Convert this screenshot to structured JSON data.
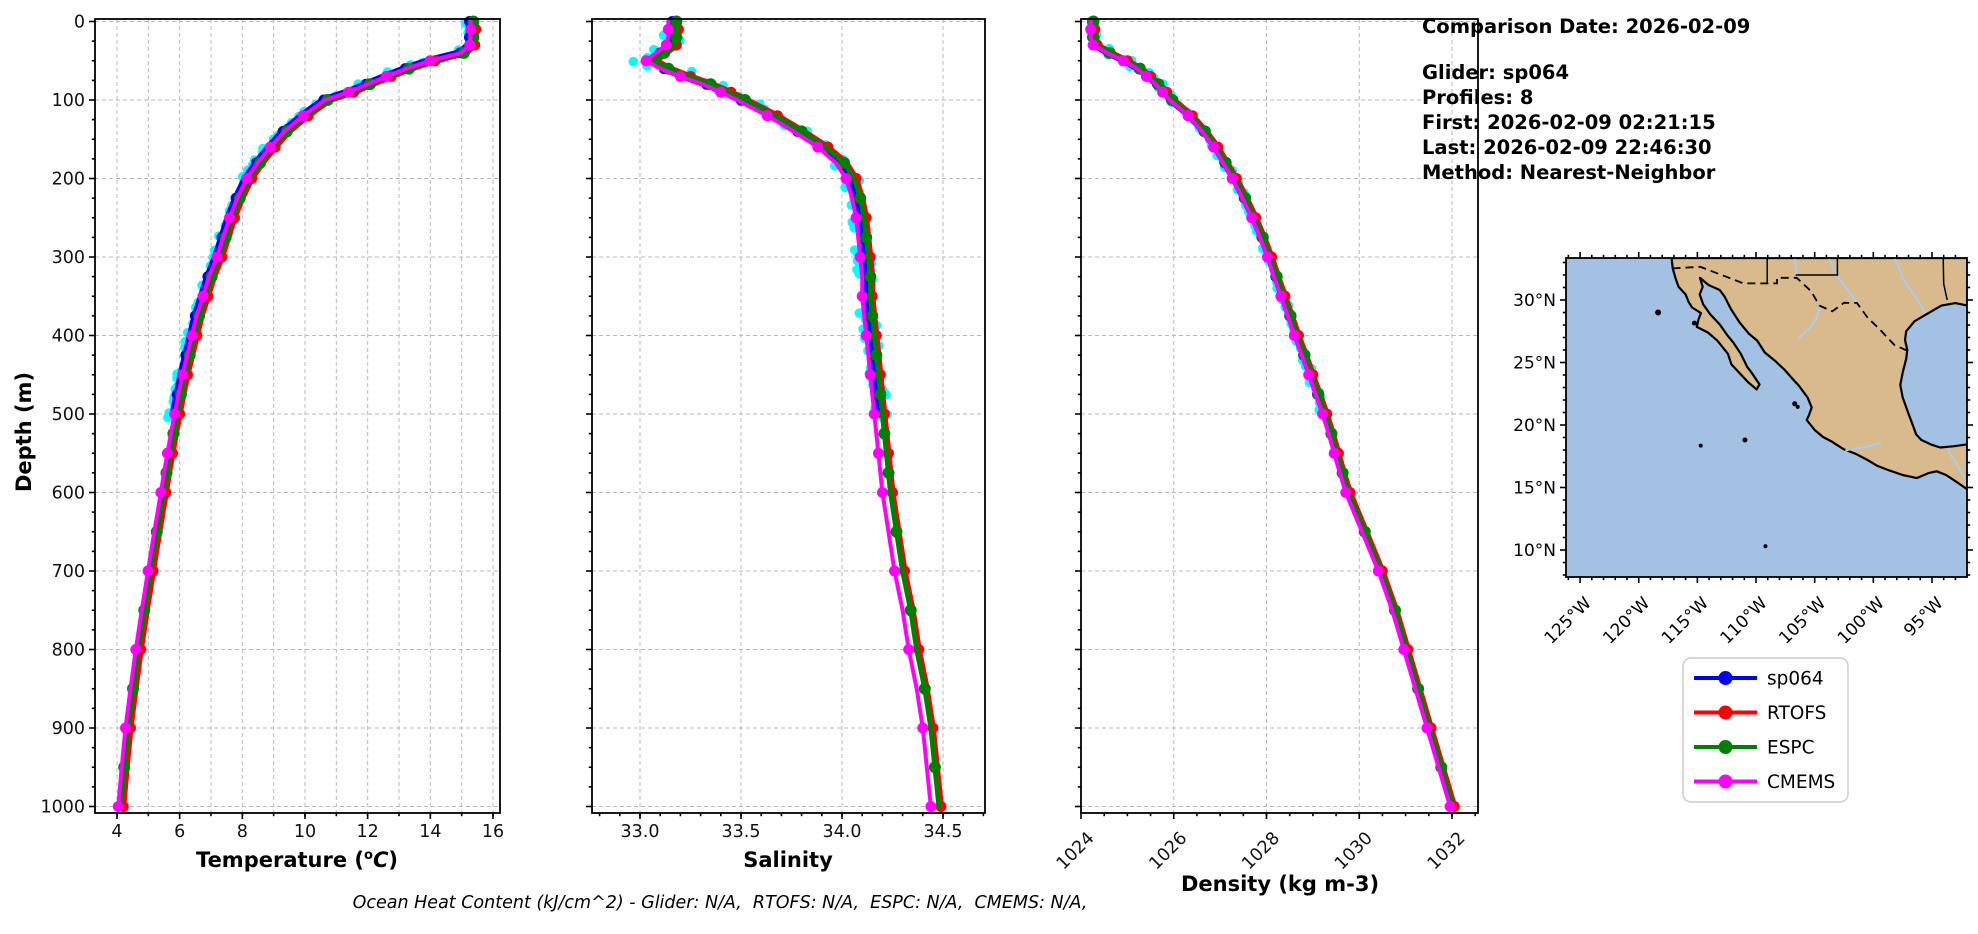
{
  "info_panel": {
    "comparison_date": "Comparison Date: 2026-02-09",
    "glider": "Glider: sp064",
    "profiles": "Profiles: 8",
    "first": "First: 2026-02-09 02:21:15",
    "last": "Last: 2026-02-09 22:46:30",
    "method": "Method: Nearest-Neighbor"
  },
  "legend": {
    "entries": [
      {
        "label": "sp064",
        "color": "#0000ff"
      },
      {
        "label": "RTOFS",
        "color": "#ff0000"
      },
      {
        "label": "ESPC",
        "color": "#008000"
      },
      {
        "label": "CMEMS",
        "color": "#ff00ff"
      }
    ]
  },
  "ohc_note": "Ocean Heat Content (kJ/cm^2) - Glider: N/A,  RTOFS: N/A,  ESPC: N/A,  CMEMS: N/A,",
  "axis_labels": {
    "depth": "Depth (m)",
    "temperature": {
      "pre": "Temperature (",
      "sup": "o",
      "italic": "C",
      "post": ")"
    },
    "salinity": "Salinity",
    "density": "Density (kg m-3)"
  },
  "map": {
    "lat_tick_labels": [
      "30°N",
      "25°N",
      "20°N",
      "15°N",
      "10°N"
    ],
    "lat_tick_values": [
      30,
      25,
      20,
      15,
      10
    ],
    "lon_tick_labels": [
      "125°W",
      "120°W",
      "115°W",
      "110°W",
      "105°W",
      "100°W",
      "95°W"
    ],
    "lon_tick_values": [
      125,
      120,
      115,
      110,
      105,
      100,
      95
    ],
    "land_color": "#d9ba8c",
    "ocean_color": "#a3c1e2",
    "river_color": "#a8cdf2",
    "coast_color": "#000000"
  },
  "chart_data": [
    {
      "type": "line",
      "id": "temperature",
      "xlabel": "Temperature (°C)",
      "ylabel": "Depth (m)",
      "xlim": [
        3.3,
        16.22
      ],
      "ylim": [
        1008,
        -3
      ],
      "xticks": [
        4,
        6,
        8,
        10,
        12,
        14,
        16
      ],
      "xtick_labels": [
        "4",
        "6",
        "8",
        "10",
        "12",
        "14",
        "16"
      ],
      "grid_x": [
        4,
        5,
        6,
        7,
        8,
        9,
        10,
        11,
        12,
        13,
        14,
        15,
        16
      ],
      "minor_step": 1,
      "yticks": [
        0,
        100,
        200,
        300,
        400,
        500,
        600,
        700,
        800,
        900,
        1000
      ],
      "depths": [
        0,
        10,
        20,
        30,
        40,
        50,
        60,
        70,
        80,
        90,
        100,
        120,
        140,
        160,
        180,
        200,
        225,
        250,
        275,
        300,
        325,
        350,
        375,
        400,
        425,
        450,
        475,
        500,
        525,
        550,
        575,
        600,
        650,
        700,
        750,
        800,
        850,
        900,
        950,
        1000
      ],
      "values": [
        15.25,
        15.25,
        15.25,
        15.22,
        14.95,
        13.95,
        13.2,
        12.55,
        11.95,
        11.35,
        10.6,
        9.9,
        9.3,
        8.85,
        8.45,
        8.1,
        7.8,
        7.55,
        7.35,
        7.15,
        6.9,
        6.7,
        6.5,
        6.35,
        6.2,
        6.05,
        5.92,
        5.8,
        5.68,
        5.57,
        5.46,
        5.36,
        5.15,
        4.95,
        4.75,
        4.56,
        4.39,
        4.23,
        4.11,
        4.0
      ],
      "series": [
        {
          "name": "sp064",
          "color": "#0000ff",
          "offset": 0,
          "max_depth": 510,
          "line_width": 7.5,
          "marker_phase": 0,
          "marker_size": 5.5
        },
        {
          "name": "RTOFS",
          "color": "#ff0000",
          "offset": 0.2,
          "max_depth": 1000,
          "line_width": 6,
          "marker_phase": 1,
          "marker_size": 5.5
        },
        {
          "name": "ESPC",
          "color": "#008000",
          "offset": 0.12,
          "max_depth": 1000,
          "line_width": 5,
          "marker_phase": 0,
          "marker_size": 6
        },
        {
          "name": "CMEMS",
          "color": "#ff00ff",
          "offset": 0.04,
          "max_depth": 1000,
          "line_width": 4,
          "marker_phase": 1,
          "marker_size": 5.5
        }
      ],
      "scatter": {
        "color": "#00ffff",
        "jitter": 0.16,
        "max_depth": 512
      }
    },
    {
      "type": "line",
      "id": "salinity",
      "xlabel": "Salinity",
      "ylabel": "Depth (m)",
      "xlim": [
        32.76,
        34.71
      ],
      "ylim": [
        1008,
        -3
      ],
      "xticks": [
        33.0,
        33.5,
        34.0,
        34.5
      ],
      "xtick_labels": [
        "33.0",
        "33.5",
        "34.0",
        "34.5"
      ],
      "grid_x": [
        33.0,
        33.5,
        34.0,
        34.5
      ],
      "minor_step": 0.1,
      "yticks": [
        0,
        100,
        200,
        300,
        400,
        500,
        600,
        700,
        800,
        900,
        1000
      ],
      "depths": [
        0,
        10,
        20,
        30,
        40,
        50,
        60,
        70,
        80,
        90,
        100,
        120,
        140,
        160,
        180,
        200,
        225,
        250,
        275,
        300,
        325,
        350,
        375,
        400,
        425,
        450,
        475,
        500,
        525,
        550,
        575,
        600,
        650,
        700,
        750,
        800,
        850,
        900,
        950,
        1000
      ],
      "values": [
        33.16,
        33.16,
        33.16,
        33.15,
        33.1,
        33.05,
        33.12,
        33.22,
        33.33,
        33.42,
        33.5,
        33.65,
        33.78,
        33.9,
        33.99,
        34.04,
        34.07,
        34.09,
        34.1,
        34.11,
        34.12,
        34.12,
        34.13,
        34.14,
        34.15,
        34.16,
        34.17,
        34.18,
        34.19,
        34.2,
        34.21,
        34.22,
        34.25,
        34.28,
        34.32,
        34.35,
        34.39,
        34.42,
        34.44,
        34.46
      ],
      "series": [
        {
          "name": "sp064",
          "color": "#0000ff",
          "offset": 0,
          "max_depth": 510,
          "line_width": 7.5,
          "marker_phase": 0,
          "marker_size": 5.5
        },
        {
          "name": "RTOFS",
          "color": "#ff0000",
          "offset": 0.03,
          "max_depth": 1000,
          "line_width": 6,
          "marker_phase": 1,
          "marker_size": 5.5
        },
        {
          "name": "ESPC",
          "color": "#008000",
          "offset": 0.02,
          "max_depth": 1000,
          "line_width": 5,
          "marker_phase": 0,
          "marker_size": 6
        },
        {
          "name": "CMEMS",
          "color": "#ff00ff",
          "offset": -0.02,
          "max_depth": 1000,
          "line_width": 4,
          "marker_phase": 1,
          "marker_size": 5.5
        }
      ],
      "scatter": {
        "color": "#00ffff",
        "jitter": 0.05,
        "max_depth": 512
      }
    },
    {
      "type": "line",
      "id": "density",
      "xlabel": "Density (kg m-3)",
      "ylabel": "Depth (m)",
      "xlim": [
        1024,
        1032.56
      ],
      "ylim": [
        1008,
        -3
      ],
      "xticks": [
        1024,
        1026,
        1028,
        1030,
        1032
      ],
      "xtick_labels": [
        "1024",
        "1026",
        "1028",
        "1030",
        "1032"
      ],
      "grid_x": [
        1024,
        1026,
        1028,
        1030,
        1032
      ],
      "minor_step": 0.5,
      "yticks": [
        0,
        100,
        200,
        300,
        400,
        500,
        600,
        700,
        800,
        900,
        1000
      ],
      "depths": [
        0,
        10,
        20,
        30,
        40,
        50,
        60,
        70,
        80,
        90,
        100,
        120,
        140,
        160,
        180,
        200,
        225,
        250,
        275,
        300,
        325,
        350,
        375,
        400,
        425,
        450,
        475,
        500,
        525,
        550,
        575,
        600,
        650,
        700,
        750,
        800,
        850,
        900,
        950,
        1000
      ],
      "values": [
        1024.25,
        1024.25,
        1024.25,
        1024.3,
        1024.6,
        1024.95,
        1025.25,
        1025.45,
        1025.65,
        1025.8,
        1025.95,
        1026.35,
        1026.65,
        1026.9,
        1027.1,
        1027.3,
        1027.52,
        1027.72,
        1027.9,
        1028.06,
        1028.2,
        1028.35,
        1028.5,
        1028.64,
        1028.8,
        1028.95,
        1029.1,
        1029.25,
        1029.38,
        1029.5,
        1029.62,
        1029.75,
        1030.1,
        1030.45,
        1030.75,
        1031.0,
        1031.25,
        1031.5,
        1031.75,
        1032.0
      ],
      "series": [
        {
          "name": "sp064",
          "color": "#0000ff",
          "offset": 0,
          "max_depth": 510,
          "line_width": 7.5,
          "marker_phase": 0,
          "marker_size": 5.5
        },
        {
          "name": "RTOFS",
          "color": "#ff0000",
          "offset": 0.05,
          "max_depth": 1000,
          "line_width": 6,
          "marker_phase": 1,
          "marker_size": 5.5
        },
        {
          "name": "ESPC",
          "color": "#008000",
          "offset": 0.02,
          "max_depth": 1000,
          "line_width": 5,
          "marker_phase": 0,
          "marker_size": 6
        },
        {
          "name": "CMEMS",
          "color": "#ff00ff",
          "offset": -0.04,
          "max_depth": 1000,
          "line_width": 4,
          "marker_phase": 1,
          "marker_size": 5.5
        }
      ],
      "scatter": {
        "color": "#00ffff",
        "jitter": 0.08,
        "max_depth": 512
      }
    }
  ]
}
